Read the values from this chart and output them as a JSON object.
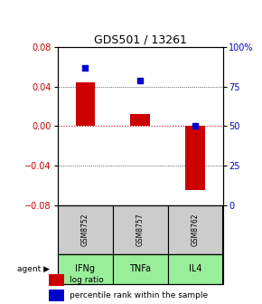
{
  "title": "GDS501 / 13261",
  "samples": [
    "GSM8752",
    "GSM8757",
    "GSM8762"
  ],
  "agents": [
    "IFNg",
    "TNFa",
    "IL4"
  ],
  "log_ratios": [
    0.044,
    0.012,
    -0.065
  ],
  "percentile_ranks": [
    87,
    79,
    50
  ],
  "ylim_left": [
    -0.08,
    0.08
  ],
  "ylim_right": [
    0,
    100
  ],
  "yticks_left": [
    -0.08,
    -0.04,
    0,
    0.04,
    0.08
  ],
  "yticks_right": [
    0,
    25,
    50,
    75,
    100
  ],
  "ytick_labels_right": [
    "0",
    "25",
    "50",
    "75",
    "100%"
  ],
  "bar_color": "#cc0000",
  "dot_color": "#0000cc",
  "zero_line_color": "#cc0000",
  "bg_color": "#ffffff",
  "sample_box_color": "#cccccc",
  "agent_box_color": "#99ee99",
  "bar_width": 0.35
}
